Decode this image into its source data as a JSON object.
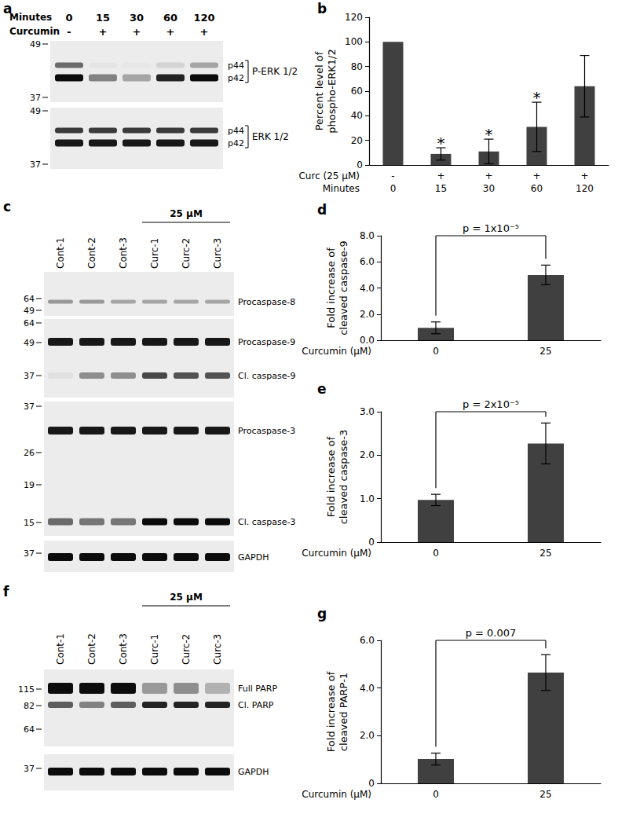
{
  "chart_data": [
    {
      "panel_label": "b",
      "type": "bar",
      "categories": [
        "0",
        "15",
        "30",
        "60",
        "120"
      ],
      "treatment": [
        "-",
        "+",
        "+",
        "+",
        "+"
      ],
      "row_labels": [
        "Curc (25 µM)",
        "Minutes"
      ],
      "y_label": "Percent level of\nphospho-ERK1/2",
      "values": [
        100,
        9,
        11,
        31,
        64
      ],
      "errors": [
        null,
        5,
        10,
        20,
        25
      ],
      "significance": [
        null,
        "*",
        "*",
        "*",
        null
      ],
      "color": "#404040",
      "grid": false,
      "ylim": [
        0,
        120
      ],
      "yticks": [
        0,
        20,
        40,
        60,
        80,
        100,
        120
      ]
    },
    {
      "panel_label": "d",
      "type": "bar",
      "categories": [
        "0",
        "25"
      ],
      "x_label": "Curcumin (µM)",
      "y_label": "Fold increase of\ncleaved caspase-9",
      "values": [
        0.95,
        5.0
      ],
      "errors": [
        0.45,
        0.75
      ],
      "comparison": {
        "text": "p = 1x10⁻⁵",
        "between": [
          0,
          1
        ]
      },
      "color": "#404040",
      "grid": false,
      "ylim": [
        0,
        8
      ],
      "yticks": [
        {
          "value": 0,
          "label": "0.0"
        },
        {
          "value": 2,
          "label": "2.0"
        },
        {
          "value": 4,
          "label": "4.0"
        },
        {
          "value": 6,
          "label": "6.0"
        },
        {
          "value": 8,
          "label": "8.0"
        }
      ]
    },
    {
      "panel_label": "e",
      "type": "bar",
      "categories": [
        "0",
        "25"
      ],
      "x_label": "Curcumin (µM)",
      "y_label": "Fold increase of\ncleaved caspase-3",
      "values": [
        0.97,
        2.27
      ],
      "errors": [
        0.13,
        0.47
      ],
      "comparison": {
        "text": "p = 2x10⁻⁵",
        "between": [
          0,
          1
        ]
      },
      "color": "#404040",
      "grid": false,
      "ylim": [
        0,
        3
      ],
      "yticks": [
        0,
        {
          "value": 1,
          "label": "1.0"
        },
        {
          "value": 2,
          "label": "2.0"
        },
        {
          "value": 3,
          "label": "3.0"
        }
      ]
    },
    {
      "panel_label": "g",
      "type": "bar",
      "categories": [
        "0",
        "25"
      ],
      "x_label": "Curcumin (µM)",
      "y_label": "Fold increase of\ncleaved PARP-1",
      "values": [
        1.02,
        4.65
      ],
      "errors": [
        0.25,
        0.75
      ],
      "comparison": {
        "text": "p = 0.007",
        "between": [
          0,
          1
        ]
      },
      "color": "#404040",
      "grid": false,
      "ylim": [
        0,
        6
      ],
      "yticks": [
        0,
        {
          "value": 2,
          "label": "2.0"
        },
        {
          "value": 4,
          "label": "4.0"
        },
        {
          "value": 6,
          "label": "6.0"
        }
      ]
    }
  ],
  "blots": [
    {
      "panel_label": "a",
      "header": [
        {
          "label": "Minutes",
          "lanes": [
            "0",
            "15",
            "30",
            "60",
            "120"
          ]
        },
        {
          "label": "Curcumin",
          "lanes": [
            "-",
            "+",
            "+",
            "+",
            "+"
          ]
        }
      ],
      "membranes": [
        {
          "markers": [
            49,
            37
          ],
          "group_label": "P-ERK 1/2",
          "bands": [
            {
              "label": "p44",
              "intensity": [
                0.55,
                0.03,
                0.02,
                0.1,
                0.3
              ]
            },
            {
              "label": "p42",
              "intensity": [
                0.95,
                0.45,
                0.3,
                0.85,
                0.95
              ]
            }
          ]
        },
        {
          "markers": [
            49,
            37
          ],
          "group_label": "ERK 1/2",
          "bands": [
            {
              "label": "p44",
              "intensity": [
                0.75,
                0.75,
                0.75,
                0.75,
                0.75
              ]
            },
            {
              "label": "p42",
              "intensity": [
                0.9,
                0.9,
                0.9,
                0.9,
                0.9
              ]
            }
          ]
        }
      ]
    },
    {
      "panel_label": "c",
      "lanes": [
        "Cont-1",
        "Cont-2",
        "Cont-3",
        "Curc-1",
        "Curc-2",
        "Curc-3"
      ],
      "treatment": {
        "label": "25 µM",
        "span": [
          3,
          5
        ]
      },
      "membranes": [
        {
          "markers": [
            64,
            49
          ],
          "bands": [
            {
              "label": "Procaspase-8",
              "intensity": [
                0.35,
                0.35,
                0.3,
                0.3,
                0.3,
                0.3
              ]
            }
          ]
        },
        {
          "markers": [
            64,
            49,
            37
          ],
          "bands": [
            {
              "label": "Procaspase-9",
              "intensity": [
                0.9,
                0.9,
                0.9,
                0.9,
                0.9,
                0.9
              ]
            },
            {
              "label": "Cl. caspase-9",
              "intensity": [
                0.05,
                0.4,
                0.4,
                0.7,
                0.65,
                0.65
              ]
            }
          ]
        },
        {
          "markers": [
            37,
            26,
            19,
            15
          ],
          "bands": [
            {
              "label": "Procaspase-3",
              "intensity": [
                0.9,
                0.9,
                0.9,
                0.9,
                0.9,
                0.9
              ]
            },
            {
              "label": "Cl. caspase-3",
              "intensity": [
                0.55,
                0.5,
                0.5,
                0.95,
                0.95,
                0.95
              ]
            }
          ]
        },
        {
          "markers": [
            37
          ],
          "bands": [
            {
              "label": "GAPDH",
              "intensity": [
                0.95,
                0.95,
                0.95,
                0.95,
                0.95,
                0.95
              ]
            }
          ]
        }
      ]
    },
    {
      "panel_label": "f",
      "lanes": [
        "Cont-1",
        "Cont-2",
        "Cont-3",
        "Curc-1",
        "Curc-2",
        "Curc-3"
      ],
      "treatment": {
        "label": "25 µM",
        "span": [
          3,
          5
        ]
      },
      "membranes": [
        {
          "markers": [
            115,
            82,
            64
          ],
          "bands": [
            {
              "label": "Full PARP",
              "intensity": [
                0.95,
                0.95,
                0.95,
                0.35,
                0.4,
                0.25
              ]
            },
            {
              "label": "Cl. PARP",
              "intensity": [
                0.6,
                0.45,
                0.6,
                0.85,
                0.85,
                0.85
              ]
            }
          ]
        },
        {
          "markers": [
            37
          ],
          "bands": [
            {
              "label": "GAPDH",
              "intensity": [
                0.95,
                0.95,
                0.95,
                0.95,
                0.95,
                0.95
              ]
            }
          ]
        }
      ]
    }
  ]
}
